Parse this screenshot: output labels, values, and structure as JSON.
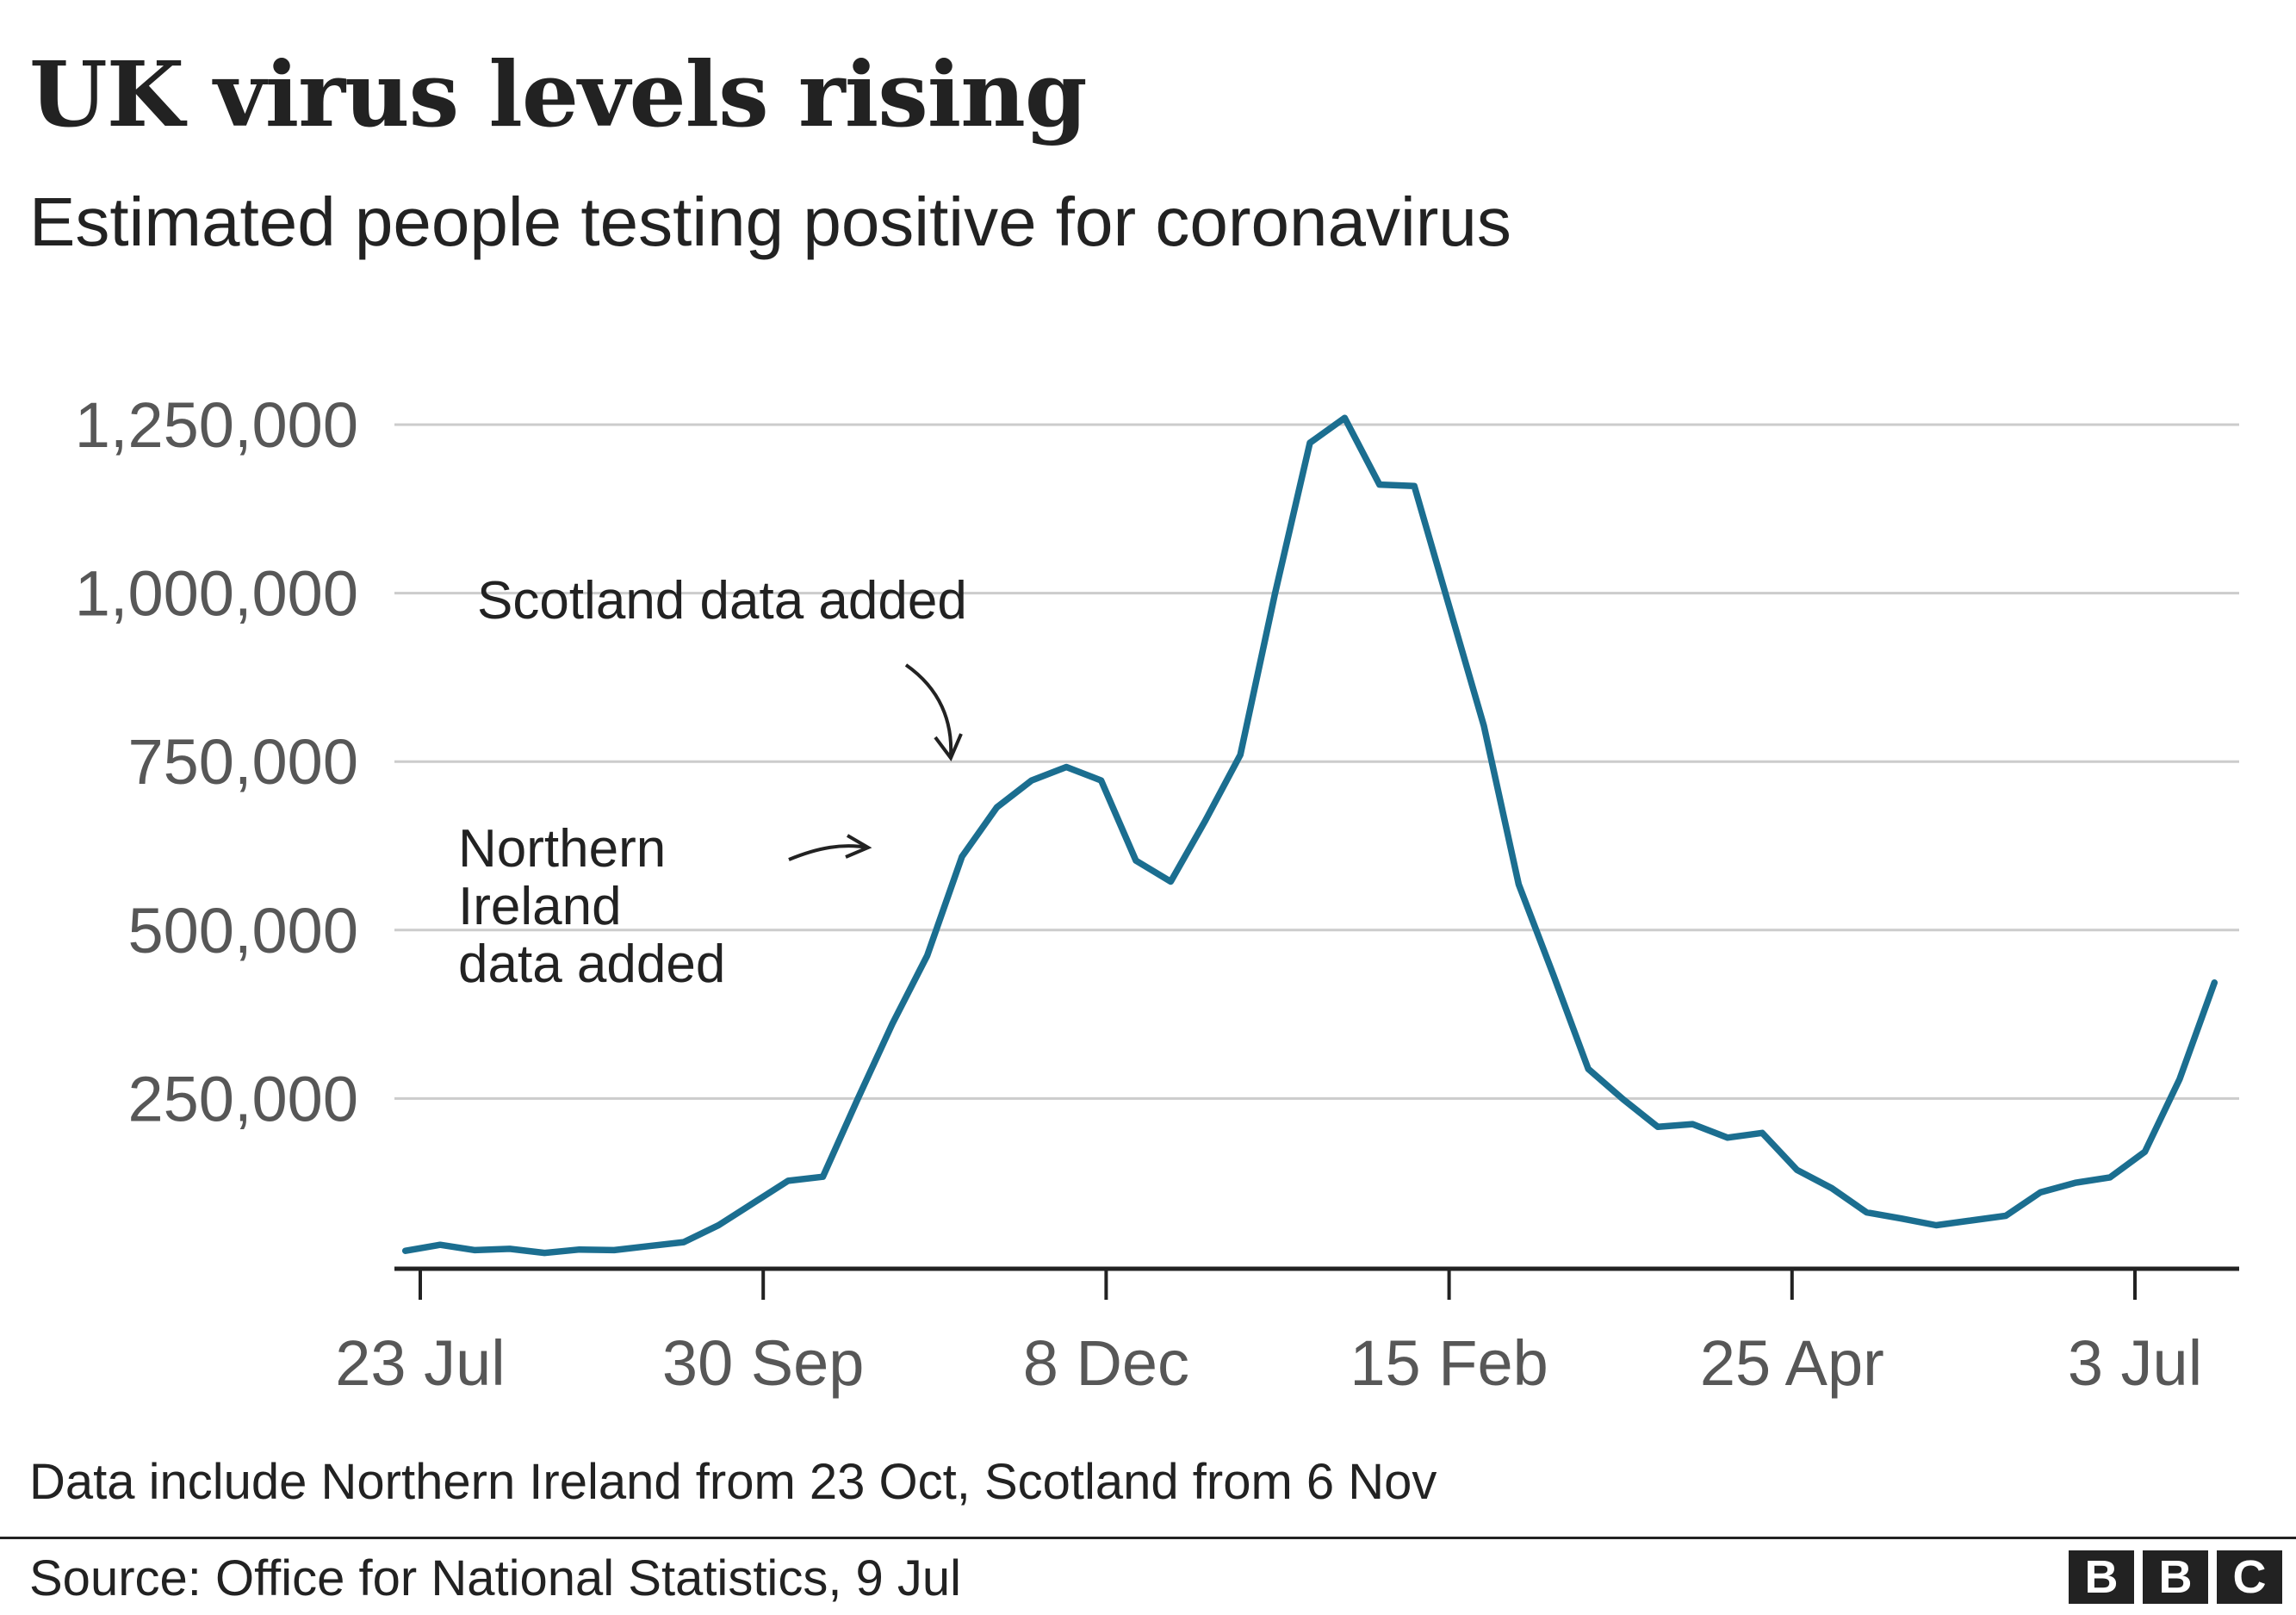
{
  "header": {
    "title": "UK virus levels rising",
    "subtitle": "Estimated people testing positive for coronavirus"
  },
  "chart_data": {
    "type": "line",
    "title": "UK virus levels rising",
    "subtitle": "Estimated people testing positive for coronavirus",
    "xlabel": "",
    "ylabel": "",
    "ylim": [
      0,
      1250000
    ],
    "grid": true,
    "line_color": "#1b6e90",
    "x_tick_labels": [
      "23 Jul",
      "30 Sep",
      "8 Dec",
      "15 Feb",
      "25 Apr",
      "3 Jul"
    ],
    "y_tick_labels": [
      "250,000",
      "500,000",
      "750,000",
      "1,000,000",
      "1,250,000"
    ],
    "y_ticks": [
      250000,
      500000,
      750000,
      1000000,
      1250000
    ],
    "series": [
      {
        "values": [
          [
            -3,
            24000
          ],
          [
            4,
            33000
          ],
          [
            11,
            25000
          ],
          [
            18,
            27000
          ],
          [
            25,
            21000
          ],
          [
            32,
            26000
          ],
          [
            39,
            25000
          ],
          [
            46,
            31000
          ],
          [
            53,
            37000
          ],
          [
            60,
            62000
          ],
          [
            67,
            95000
          ],
          [
            74,
            128000
          ],
          [
            81,
            134000
          ],
          [
            88,
            249000
          ],
          [
            95,
            361000
          ],
          [
            102,
            462000
          ],
          [
            109,
            609000
          ],
          [
            116,
            682000
          ],
          [
            123,
            722000
          ],
          [
            130,
            742000
          ],
          [
            137,
            722000
          ],
          [
            144,
            603000
          ],
          [
            151,
            572000
          ],
          [
            158,
            663000
          ],
          [
            165,
            760000
          ],
          [
            172,
            1000000
          ],
          [
            179,
            1223000
          ],
          [
            186,
            1260000
          ],
          [
            193,
            1161000
          ],
          [
            200,
            1159000
          ],
          [
            207,
            981000
          ],
          [
            214,
            803000
          ],
          [
            221,
            568000
          ],
          [
            228,
            433000
          ],
          [
            235,
            294000
          ],
          [
            242,
            249000
          ],
          [
            249,
            208000
          ],
          [
            256,
            212000
          ],
          [
            263,
            192000
          ],
          [
            270,
            199000
          ],
          [
            277,
            144000
          ],
          [
            284,
            117000
          ],
          [
            291,
            81000
          ],
          [
            298,
            72000
          ],
          [
            305,
            62000
          ],
          [
            312,
            69000
          ],
          [
            319,
            76000
          ],
          [
            326,
            111000
          ],
          [
            333,
            125000
          ],
          [
            340,
            133000
          ],
          [
            347,
            171000
          ],
          [
            354,
            279000
          ],
          [
            361,
            422000
          ]
        ]
      }
    ],
    "annotations": [
      {
        "text_lines": [
          "Scotland data added"
        ]
      },
      {
        "text_lines": [
          "Northern",
          "Ireland",
          "data added"
        ]
      }
    ]
  },
  "footer": {
    "note": "Data include Northern Ireland from 23 Oct, Scotland from 6 Nov",
    "source": "Source: Office for National Statistics, 9 Jul",
    "logo_letters": [
      "B",
      "B",
      "C"
    ]
  }
}
